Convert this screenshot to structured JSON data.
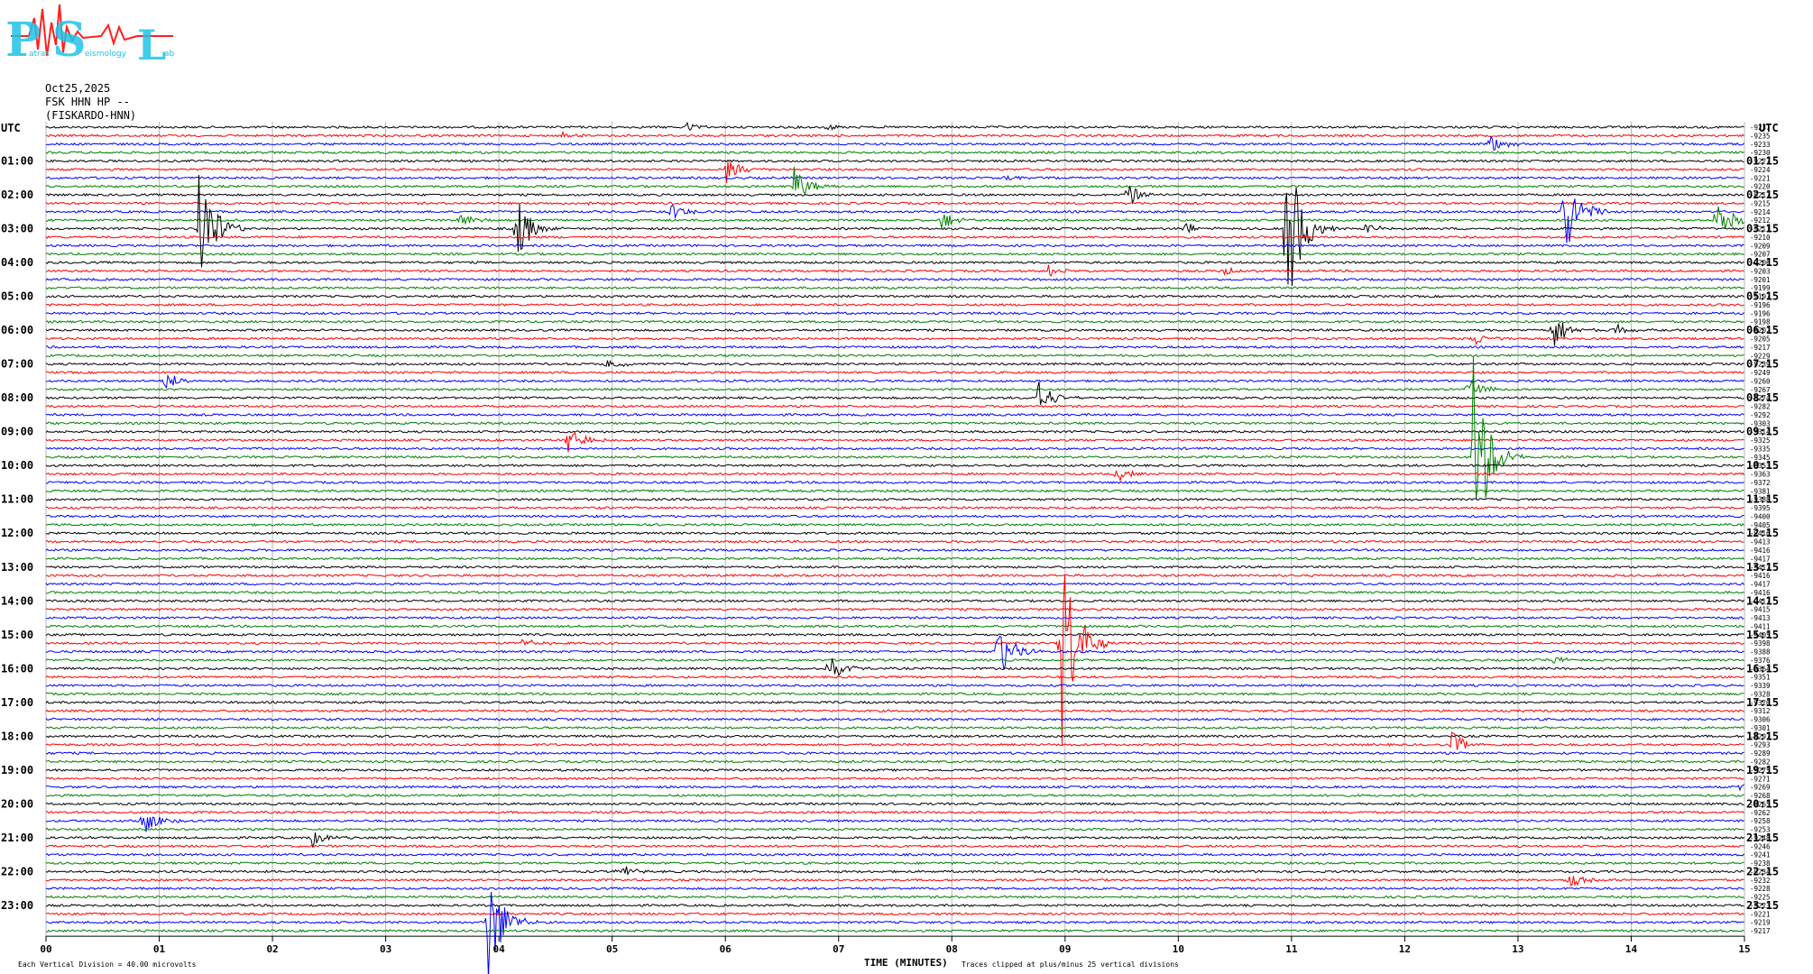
{
  "logo": {
    "letters": [
      "P",
      "S",
      "L"
    ],
    "small_text": [
      "atras",
      "eismology",
      "ab"
    ],
    "colors": {
      "letters": "#1ec3e8",
      "wave": "#ff2020"
    }
  },
  "header": {
    "date": "Oct25,2025",
    "station": "FSK HHN HP --",
    "site": "(FISKARDO-HNN)"
  },
  "chart_data": {
    "type": "line",
    "title": "",
    "left_axis_title": "UTC",
    "right_axis_title": "UTC",
    "xlabel": "TIME (MINUTES)",
    "xlim": [
      0,
      15
    ],
    "x_ticks": [
      "00",
      "01",
      "02",
      "03",
      "04",
      "05",
      "06",
      "07",
      "08",
      "09",
      "10",
      "11",
      "12",
      "13",
      "14",
      "15"
    ],
    "left_hour_labels": [
      "01:00",
      "02:00",
      "03:00",
      "04:00",
      "05:00",
      "06:00",
      "07:00",
      "08:00",
      "09:00",
      "10:00",
      "11:00",
      "12:00",
      "13:00",
      "14:00",
      "15:00",
      "16:00",
      "17:00",
      "18:00",
      "19:00",
      "20:00",
      "21:00",
      "22:00",
      "23:00"
    ],
    "right_hour_labels": [
      "01:15",
      "02:15",
      "03:15",
      "04:15",
      "05:15",
      "06:15",
      "07:15",
      "08:15",
      "09:15",
      "10:15",
      "11:15",
      "12:15",
      "13:15",
      "14:15",
      "15:15",
      "16:15",
      "17:15",
      "18:15",
      "19:15",
      "20:15",
      "21:15",
      "22:15",
      "23:15"
    ],
    "trace_count": 96,
    "trace_color_cycle": [
      "#000000",
      "#ff0000",
      "#0000ff",
      "#008000"
    ],
    "grid": true,
    "right_values": [
      "-9237",
      "-9235",
      "-9233",
      "-9230",
      "-9227",
      "-9224",
      "-9221",
      "-9220",
      "-9217",
      "-9215",
      "-9214",
      "-9212",
      "-9211",
      "-9210",
      "-9209",
      "-9207",
      "-9206",
      "-9203",
      "-9201",
      "-9199",
      "-9197",
      "-9196",
      "-9196",
      "-9198",
      "-9202",
      "-9205",
      "-9217",
      "-9229",
      "-9239",
      "-9249",
      "-9260",
      "-9267",
      "-9274",
      "-9282",
      "-9292",
      "-9303",
      "-9314",
      "-9325",
      "-9335",
      "-9345",
      "-9353",
      "-9363",
      "-9372",
      "-9381",
      "-9388",
      "-9395",
      "-9400",
      "-9405",
      "-9416",
      "-9413",
      "-9416",
      "-9417",
      "-9417",
      "-9416",
      "-9417",
      "-9416",
      "-9417",
      "-9415",
      "-9413",
      "-9411",
      "-9405",
      "-9398",
      "-9388",
      "-9376",
      "-9364",
      "-9351",
      "-9339",
      "-9328",
      "-9320",
      "-9312",
      "-9306",
      "-9301",
      "-9297",
      "-9293",
      "-9289",
      "-9282",
      "-9275",
      "-9271",
      "-9269",
      "-9268",
      "-9265",
      "-9262",
      "-9258",
      "-9253",
      "-9248",
      "-9246",
      "-9241",
      "-9238",
      "-9234",
      "-9232",
      "-9228",
      "-9225",
      "-9223",
      "-9221",
      "-9219",
      "-9217"
    ],
    "events": [
      {
        "trace": 0,
        "minute": 5.65,
        "amp": 0.6
      },
      {
        "trace": 0,
        "minute": 6.9,
        "amp": 0.4
      },
      {
        "trace": 1,
        "minute": 4.55,
        "amp": 0.5
      },
      {
        "trace": 2,
        "minute": 12.75,
        "amp": 1.2
      },
      {
        "trace": 5,
        "minute": 6.0,
        "amp": 1.8
      },
      {
        "trace": 6,
        "minute": 8.45,
        "amp": 0.5
      },
      {
        "trace": 7,
        "minute": 6.6,
        "amp": 2.5
      },
      {
        "trace": 8,
        "minute": 9.55,
        "amp": 1.5
      },
      {
        "trace": 9,
        "minute": 4.8,
        "amp": 0.6
      },
      {
        "trace": 10,
        "minute": 5.5,
        "amp": 1.2
      },
      {
        "trace": 11,
        "minute": 3.65,
        "amp": 1.2
      },
      {
        "trace": 11,
        "minute": 7.9,
        "amp": 1.3
      },
      {
        "trace": 11,
        "minute": 14.75,
        "amp": 3.0
      },
      {
        "trace": 12,
        "minute": 1.35,
        "amp": 9.0
      },
      {
        "trace": 12,
        "minute": 4.15,
        "amp": 4.0
      },
      {
        "trace": 12,
        "minute": 10.95,
        "amp": 12.0
      },
      {
        "trace": 12,
        "minute": 10.05,
        "amp": 0.8
      },
      {
        "trace": 12,
        "minute": 11.65,
        "amp": 0.6
      },
      {
        "trace": 10,
        "minute": 13.4,
        "amp": 6.0
      },
      {
        "trace": 17,
        "minute": 8.85,
        "amp": 0.8
      },
      {
        "trace": 17,
        "minute": 10.4,
        "amp": 0.6
      },
      {
        "trace": 24,
        "minute": 13.3,
        "amp": 2.5
      },
      {
        "trace": 24,
        "minute": 13.85,
        "amp": 0.8
      },
      {
        "trace": 25,
        "minute": 12.6,
        "amp": 1.0
      },
      {
        "trace": 28,
        "minute": 4.95,
        "amp": 0.8
      },
      {
        "trace": 30,
        "minute": 1.05,
        "amp": 1.2
      },
      {
        "trace": 31,
        "minute": 12.55,
        "amp": 1.5
      },
      {
        "trace": 32,
        "minute": 8.75,
        "amp": 2.5
      },
      {
        "trace": 37,
        "minute": 4.6,
        "amp": 2.0
      },
      {
        "trace": 39,
        "minute": 12.6,
        "amp": 14.0
      },
      {
        "trace": 41,
        "minute": 9.45,
        "amp": 1.0
      },
      {
        "trace": 61,
        "minute": 8.95,
        "amp": 16.0
      },
      {
        "trace": 61,
        "minute": 4.2,
        "amp": 0.6
      },
      {
        "trace": 62,
        "minute": 8.4,
        "amp": 4.0
      },
      {
        "trace": 64,
        "minute": 6.9,
        "amp": 2.0
      },
      {
        "trace": 63,
        "minute": 13.3,
        "amp": 0.6
      },
      {
        "trace": 73,
        "minute": 12.4,
        "amp": 1.8
      },
      {
        "trace": 78,
        "minute": 14.95,
        "amp": 0.8
      },
      {
        "trace": 82,
        "minute": 0.85,
        "amp": 2.0
      },
      {
        "trace": 84,
        "minute": 2.35,
        "amp": 1.0
      },
      {
        "trace": 88,
        "minute": 5.05,
        "amp": 1.0
      },
      {
        "trace": 89,
        "minute": 13.45,
        "amp": 1.2
      },
      {
        "trace": 94,
        "minute": 3.9,
        "amp": 8.0
      }
    ],
    "left_bottom_note": "Each Vertical Division =  40.00 microvolts",
    "right_bottom_note": "Traces clipped at plus/minus 25 vertical divisions"
  }
}
